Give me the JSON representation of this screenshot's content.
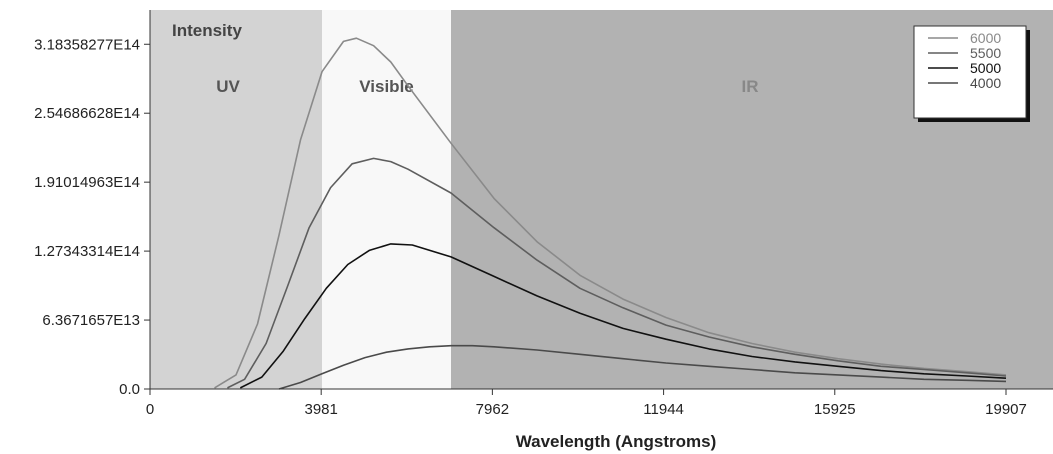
{
  "chart_data": {
    "type": "line",
    "title": "",
    "ylabel": "Intensity",
    "xlabel": "Wavelength (Angstroms)",
    "xlim": [
      0,
      21000
    ],
    "ylim": [
      0,
      350000000000000.0
    ],
    "x_ticks": [
      0,
      3981,
      7962,
      11944,
      15925,
      19907
    ],
    "x_tick_labels": [
      "0",
      "3981",
      "7962",
      "11944",
      "15925",
      "19907"
    ],
    "y_ticks": [
      0,
      63671657000000.0,
      127343314000000.0,
      191014963000000.0,
      254686628000000.0,
      318358277000000.0
    ],
    "y_tick_labels": [
      "0.0",
      "6.3671657E13",
      "1.27343314E14",
      "1.91014963E14",
      "2.54686628E14",
      "3.18358277E14"
    ],
    "regions": [
      {
        "label": "UV",
        "from": 0,
        "to": 4000,
        "color": "#d3d3d3",
        "label_color": "#555555"
      },
      {
        "label": "Visible",
        "from": 4000,
        "to": 7000,
        "color": "#f8f8f8",
        "label_color": "#555555"
      },
      {
        "label": "IR",
        "from": 7000,
        "to": 21000,
        "color": "#b2b2b2",
        "label_color": "#888888"
      }
    ],
    "grid": false,
    "legend_position": "top-right",
    "series": [
      {
        "name": "6000",
        "color": "#8a8a8a",
        "x": [
          1500,
          2000,
          2500,
          3000,
          3500,
          4000,
          4500,
          4800,
          5200,
          5600,
          6000,
          7000,
          8000,
          9000,
          10000,
          11000,
          12000,
          13000,
          14000,
          15000,
          16000,
          17000,
          18000,
          19000,
          19907
        ],
        "y": [
          1000000000000.0,
          13000000000000.0,
          60000000000000.0,
          142000000000000.0,
          230000000000000.0,
          293000000000000.0,
          321000000000000.0,
          324000000000000.0,
          317000000000000.0,
          302000000000000.0,
          280000000000000.0,
          227000000000000.0,
          176000000000000.0,
          136000000000000.0,
          105000000000000.0,
          83000000000000.0,
          66000000000000.0,
          52000000000000.0,
          42000000000000.0,
          34000000000000.0,
          28000000000000.0,
          23000000000000.0,
          19000000000000.0,
          16000000000000.0,
          13000000000000.0
        ]
      },
      {
        "name": "5500",
        "color": "#5e5e5e",
        "x": [
          1800,
          2200,
          2700,
          3200,
          3700,
          4200,
          4700,
          5200,
          5600,
          6000,
          7000,
          8000,
          9000,
          10000,
          11000,
          12000,
          13000,
          14000,
          15000,
          16000,
          17000,
          18000,
          19000,
          19907
        ],
        "y": [
          1000000000000.0,
          9000000000000.0,
          42000000000000.0,
          95000000000000.0,
          149000000000000.0,
          186000000000000.0,
          208000000000000.0,
          213000000000000.0,
          210000000000000.0,
          203000000000000.0,
          181000000000000.0,
          149000000000000.0,
          119000000000000.0,
          93000000000000.0,
          75000000000000.0,
          59000000000000.0,
          48000000000000.0,
          39000000000000.0,
          32000000000000.0,
          26000000000000.0,
          21000000000000.0,
          18000000000000.0,
          15000000000000.0,
          12000000000000.0
        ]
      },
      {
        "name": "5000",
        "color": "#111111",
        "x": [
          2100,
          2600,
          3100,
          3600,
          4100,
          4600,
          5100,
          5600,
          6100,
          7000,
          8000,
          9000,
          10000,
          11000,
          12000,
          13000,
          14000,
          15000,
          16000,
          17000,
          18000,
          19000,
          19907
        ],
        "y": [
          1000000000000.0,
          11000000000000.0,
          35000000000000.0,
          65000000000000.0,
          93000000000000.0,
          115000000000000.0,
          128000000000000.0,
          134000000000000.0,
          133000000000000.0,
          122000000000000.0,
          104000000000000.0,
          86000000000000.0,
          70000000000000.0,
          56000000000000.0,
          46000000000000.0,
          37000000000000.0,
          30000000000000.0,
          25000000000000.0,
          21000000000000.0,
          17000000000000.0,
          14000000000000.0,
          12000000000000.0,
          10000000000000.0
        ]
      },
      {
        "name": "4000",
        "color": "#4a4a4a",
        "x": [
          3000,
          3500,
          4000,
          4500,
          5000,
          5500,
          6000,
          6500,
          7000,
          7500,
          8000,
          9000,
          10000,
          11000,
          12000,
          13000,
          14000,
          15000,
          16000,
          17000,
          18000,
          19000,
          19907
        ],
        "y": [
          0.0,
          6000000000000.0,
          14000000000000.0,
          22000000000000.0,
          29000000000000.0,
          34000000000000.0,
          37000000000000.0,
          39000000000000.0,
          40000000000000.0,
          40000000000000.0,
          39000000000000.0,
          36000000000000.0,
          32000000000000.0,
          28000000000000.0,
          24000000000000.0,
          21000000000000.0,
          18000000000000.0,
          15000000000000.0,
          13000000000000.0,
          11000000000000.0,
          9000000000000.0,
          8000000000000.0,
          7000000000000.0
        ]
      }
    ]
  }
}
